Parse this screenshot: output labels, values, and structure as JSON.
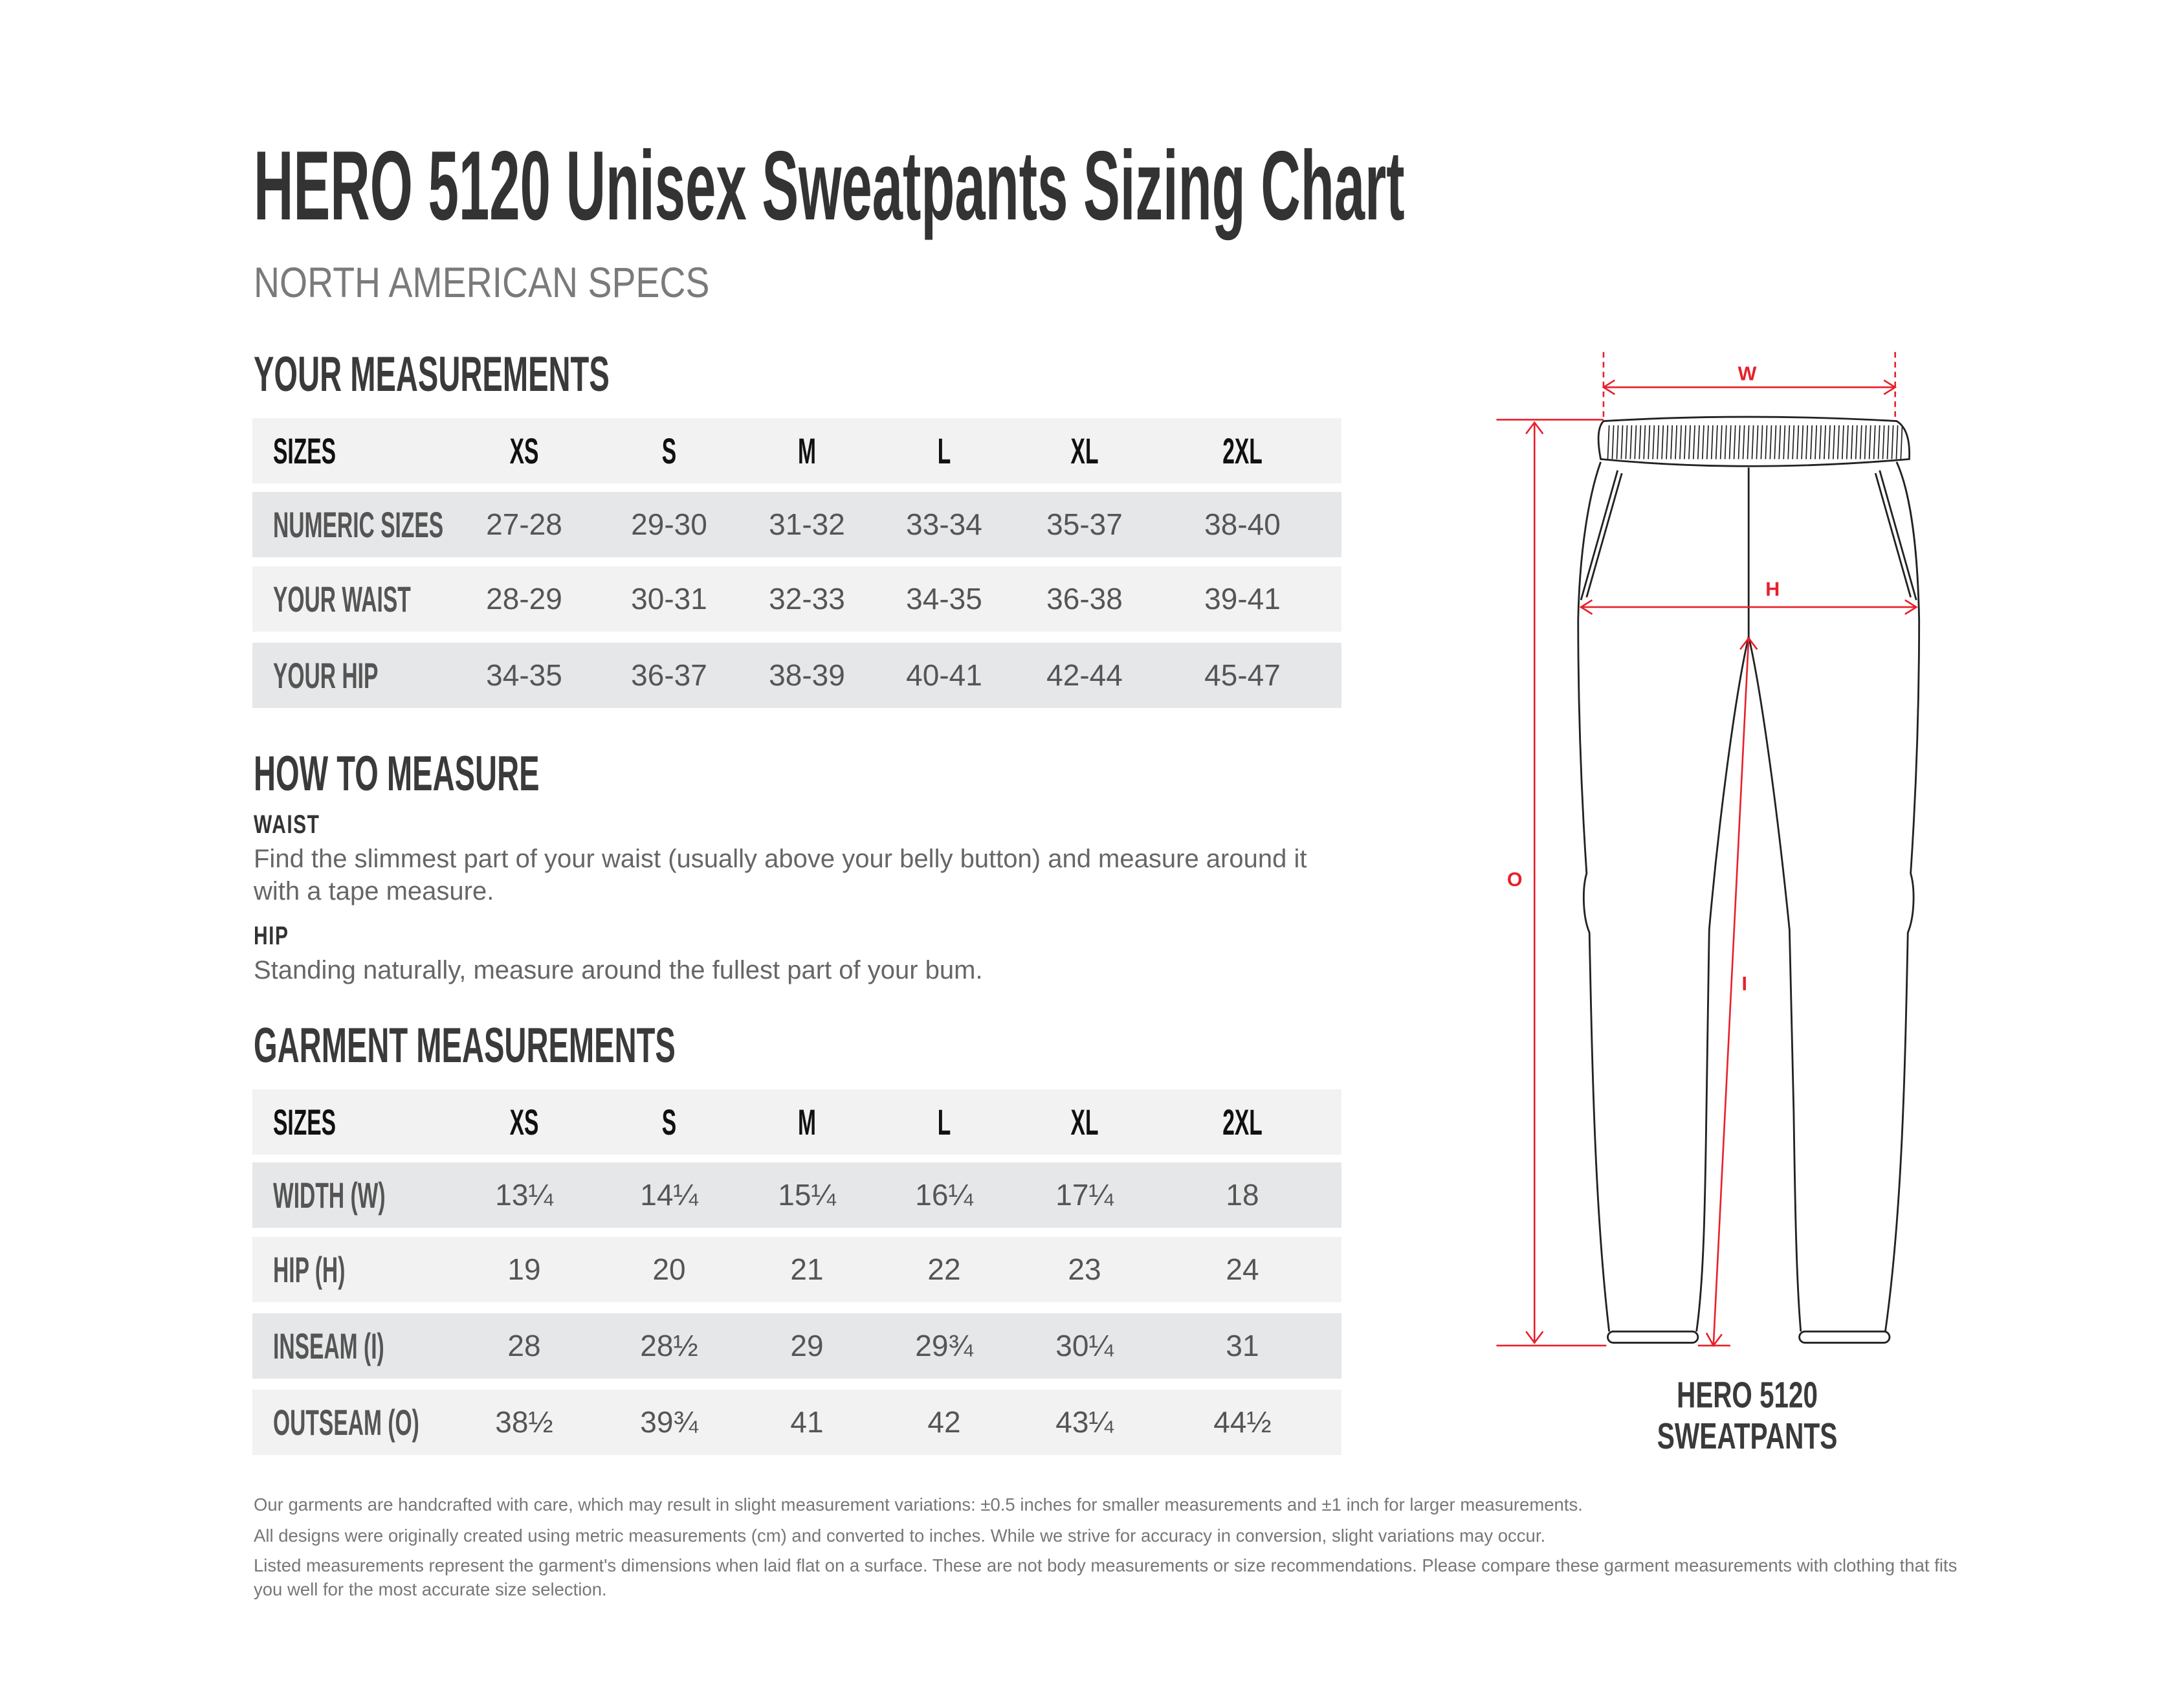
{
  "title": "HERO 5120 Unisex Sweatpants Sizing Chart",
  "subtitle": "NORTH AMERICAN SPECS",
  "your_measurements": {
    "heading": "YOUR MEASUREMENTS",
    "header": [
      "SIZES",
      "XS",
      "S",
      "M",
      "L",
      "XL",
      "2XL"
    ],
    "rows": [
      {
        "label": "NUMERIC SIZES",
        "values": [
          "27-28",
          "29-30",
          "31-32",
          "33-34",
          "35-37",
          "38-40"
        ]
      },
      {
        "label": "YOUR WAIST",
        "values": [
          "28-29",
          "30-31",
          "32-33",
          "34-35",
          "36-38",
          "39-41"
        ]
      },
      {
        "label": "YOUR HIP",
        "values": [
          "34-35",
          "36-37",
          "38-39",
          "40-41",
          "42-44",
          "45-47"
        ]
      }
    ]
  },
  "how_to_measure": {
    "heading": "HOW TO MEASURE",
    "waist_label": "WAIST",
    "waist_text": "Find the slimmest part of your waist (usually above your belly button) and measure around it with a tape measure.",
    "hip_label": "HIP",
    "hip_text": "Standing naturally, measure around the fullest part of your bum."
  },
  "garment_measurements": {
    "heading": "GARMENT MEASUREMENTS",
    "header": [
      "SIZES",
      "XS",
      "S",
      "M",
      "L",
      "XL",
      "2XL"
    ],
    "rows": [
      {
        "label": "WIDTH (W)",
        "values": [
          "13¼",
          "14¼",
          "15¼",
          "16¼",
          "17¼",
          "18"
        ]
      },
      {
        "label": "HIP (H)",
        "values": [
          "19",
          "20",
          "21",
          "22",
          "23",
          "24"
        ]
      },
      {
        "label": "INSEAM (I)",
        "values": [
          "28",
          "28½",
          "29",
          "29¾",
          "30¼",
          "31"
        ]
      },
      {
        "label": "OUTSEAM (O)",
        "values": [
          "38½",
          "39¾",
          "41",
          "42",
          "43¼",
          "44½"
        ]
      }
    ]
  },
  "diagram": {
    "labels": {
      "w": "W",
      "h": "H",
      "o": "O",
      "i": "I"
    },
    "caption_line1": "HERO 5120",
    "caption_line2": "SWEATPANTS",
    "accent_color": "#e8202a",
    "outline_color": "#222222"
  },
  "footer": [
    "Our garments are handcrafted with care, which may result in slight measurement variations: ±0.5 inches for smaller measurements and ±1 inch for larger measurements.",
    "All designs were originally created using metric measurements (cm) and converted to inches. While we strive for accuracy in conversion, slight variations may occur.",
    "Listed measurements represent the garment's dimensions when laid flat on a surface. These are not body measurements or size recommendations. Please compare these garment measurements with clothing that fits you well for the most accurate size selection."
  ]
}
